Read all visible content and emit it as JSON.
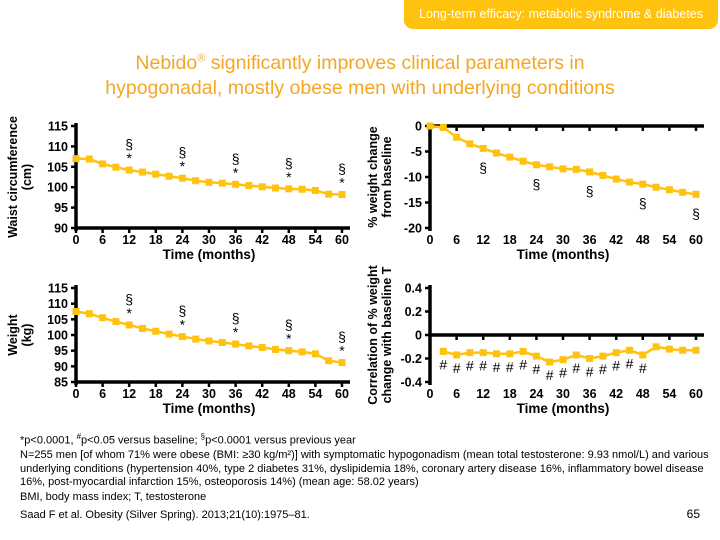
{
  "banner": {
    "text": "Long-term efficacy: metabolic syndrome & diabetes"
  },
  "title": {
    "line1_pre": "Nebido",
    "line1_sup": "®",
    "line1_post": " significantly improves clinical parameters in",
    "line2": "hypogonadal, mostly obese men with underlying conditions"
  },
  "colors": {
    "banner_bg": "#FFC20E",
    "banner_text": "#FFFFFF",
    "title_text": "#F5A623",
    "line": "#FFC20E",
    "axis": "#000000"
  },
  "chart_data": [
    {
      "type": "line",
      "name": "waist-circumference",
      "ylabel_lines": [
        "Waist circumference",
        "(cm)"
      ],
      "xlabel": "Time (months)",
      "xlim": [
        0,
        60
      ],
      "ylim": [
        90,
        115
      ],
      "xticks": [
        0,
        6,
        12,
        18,
        24,
        30,
        36,
        42,
        48,
        54,
        60
      ],
      "yticks": [
        115,
        110,
        105,
        100,
        95,
        90
      ],
      "axis_y": 90,
      "x": [
        0,
        3,
        6,
        9,
        12,
        15,
        18,
        21,
        24,
        27,
        30,
        33,
        36,
        39,
        42,
        45,
        48,
        51,
        54,
        57,
        60
      ],
      "y": [
        107,
        106.9,
        105.7,
        104.9,
        104.2,
        103.7,
        103.2,
        102.7,
        102.2,
        101.6,
        101.2,
        101,
        100.7,
        100.4,
        100.1,
        99.8,
        99.6,
        99.5,
        99.2,
        98.3,
        98.2
      ],
      "annotations": {
        "months": [
          12,
          24,
          36,
          48,
          60
        ],
        "symbols": [
          "§",
          "*"
        ],
        "position": "above"
      }
    },
    {
      "type": "line",
      "name": "percent-weight-change",
      "ylabel_lines": [
        "% weight change",
        "from baseline"
      ],
      "xlabel": "Time (months)",
      "xlim": [
        0,
        60
      ],
      "ylim": [
        -20,
        0
      ],
      "xticks": [
        0,
        6,
        12,
        18,
        24,
        30,
        36,
        42,
        48,
        54,
        60
      ],
      "yticks": [
        0,
        -5,
        -10,
        -15,
        -20
      ],
      "axis_y": 0,
      "x": [
        0,
        3,
        6,
        9,
        12,
        15,
        18,
        21,
        24,
        27,
        30,
        33,
        36,
        39,
        42,
        45,
        48,
        51,
        54,
        57,
        60
      ],
      "y": [
        0,
        -0.3,
        -2.2,
        -3.5,
        -4.4,
        -5.3,
        -6.1,
        -6.9,
        -7.6,
        -8,
        -8.4,
        -8.5,
        -9,
        -9.7,
        -10.4,
        -11,
        -11.4,
        -12,
        -12.5,
        -13,
        -13.4
      ],
      "annotations": {
        "months": [
          12,
          24,
          36,
          48,
          60
        ],
        "symbols": [
          "§"
        ],
        "position": "below"
      }
    },
    {
      "type": "line",
      "name": "weight",
      "ylabel_lines": [
        "Weight",
        "(kg)"
      ],
      "xlabel": "Time (months)",
      "xlim": [
        0,
        60
      ],
      "ylim": [
        85,
        115
      ],
      "xticks": [
        0,
        6,
        12,
        18,
        24,
        30,
        36,
        42,
        48,
        54,
        60
      ],
      "yticks": [
        115,
        110,
        105,
        100,
        95,
        90,
        85
      ],
      "axis_y": 85,
      "x": [
        0,
        3,
        6,
        9,
        12,
        15,
        18,
        21,
        24,
        27,
        30,
        33,
        36,
        39,
        42,
        45,
        48,
        51,
        54,
        57,
        60
      ],
      "y": [
        107.5,
        106.8,
        105.5,
        104.3,
        103.2,
        102.1,
        101.2,
        100.3,
        99.5,
        98.7,
        98.1,
        97.6,
        97.1,
        96.5,
        96,
        95.4,
        95,
        94.6,
        94,
        91.8,
        91.2
      ],
      "annotations": {
        "months": [
          12,
          24,
          36,
          48,
          60
        ],
        "symbols": [
          "§",
          "*"
        ],
        "position": "above"
      }
    },
    {
      "type": "line",
      "name": "correlation-weight-change-baseline-t",
      "ylabel_lines": [
        "Correlation of % weight",
        "change with baseline T"
      ],
      "xlabel": "Time (months)",
      "xlim": [
        0,
        60
      ],
      "ylim": [
        -0.4,
        0.4
      ],
      "xticks": [
        0,
        6,
        12,
        18,
        24,
        30,
        36,
        42,
        48,
        54,
        60
      ],
      "yticks": [
        0.4,
        0.2,
        0,
        -0.2,
        -0.4
      ],
      "axis_y": 0,
      "x": [
        3,
        6,
        9,
        12,
        15,
        18,
        21,
        24,
        27,
        30,
        33,
        36,
        39,
        42,
        45,
        48,
        51,
        54,
        57,
        60
      ],
      "y": [
        -0.14,
        -0.17,
        -0.15,
        -0.15,
        -0.16,
        -0.16,
        -0.14,
        -0.18,
        -0.23,
        -0.21,
        -0.17,
        -0.2,
        -0.18,
        -0.15,
        -0.13,
        -0.17,
        -0.1,
        -0.12,
        -0.13,
        -0.13
      ],
      "annotations": {
        "months": [
          3,
          6,
          9,
          12,
          15,
          18,
          21,
          24,
          27,
          30,
          33,
          36,
          39,
          42,
          45,
          48
        ],
        "symbols": [
          "#"
        ],
        "position": "below"
      }
    }
  ],
  "footnotes": {
    "line1": {
      "p1": "*p<0.0001, ",
      "sup1": "#",
      "p2": "p<0.05 versus baseline; ",
      "sup2": "§",
      "p3": "p<0.0001 versus previous year"
    },
    "body": "N=255 men [of whom 71% were obese (BMI: ≥30 kg/m²)] with symptomatic hypogonadism (mean total testosterone: 9.93 nmol/L) and various underlying conditions (hypertension 40%, type 2 diabetes 31%, dyslipidemia 18%, coronary artery disease 16%, inflammatory bowel disease 16%, post-myocardial infarction 15%, osteoporosis 14%) (mean age: 58.02 years)",
    "abbrev": "BMI, body mass index; T, testosterone"
  },
  "citation": "Saad F et al. Obesity (Silver Spring). 2013;21(10):1975–81.",
  "page_number": "65"
}
